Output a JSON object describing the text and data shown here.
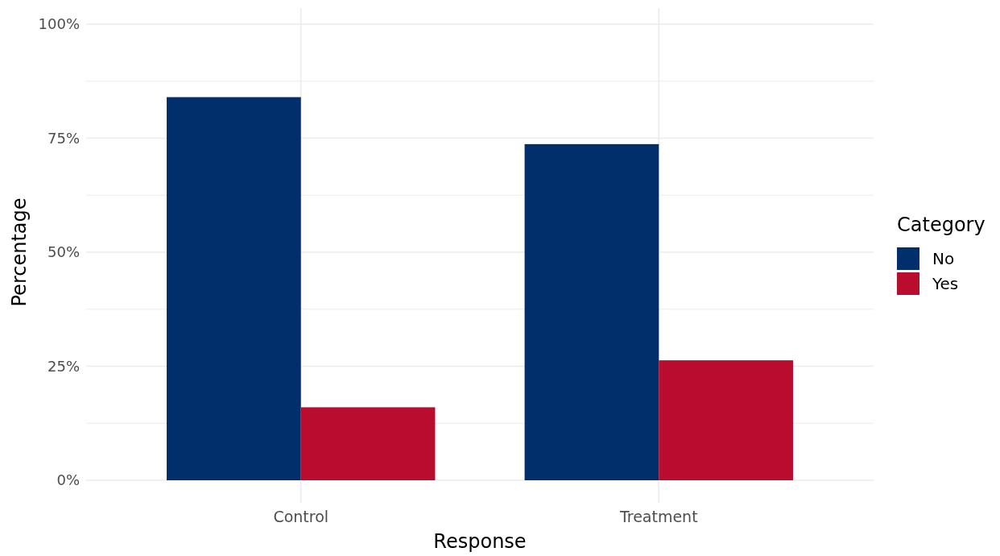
{
  "chart_data": {
    "type": "bar",
    "xlabel": "Response",
    "ylabel": "Percentage",
    "legend_title": "Category",
    "categories": [
      "Control",
      "Treatment"
    ],
    "series": [
      {
        "name": "No",
        "color": "#002f6c",
        "values": [
          84,
          73.7
        ]
      },
      {
        "name": "Yes",
        "color": "#ba0c2f",
        "values": [
          16,
          26.3
        ]
      }
    ],
    "ylim": [
      0,
      100
    ],
    "yticks": [
      {
        "value": 0,
        "label": "0%"
      },
      {
        "value": 12.5,
        "label": null
      },
      {
        "value": 25,
        "label": "25%"
      },
      {
        "value": 37.5,
        "label": null
      },
      {
        "value": 50,
        "label": "50%"
      },
      {
        "value": 62.5,
        "label": null
      },
      {
        "value": 75,
        "label": "75%"
      },
      {
        "value": 87.5,
        "label": null
      },
      {
        "value": 100,
        "label": "100%"
      }
    ],
    "grid": true,
    "legend": "right"
  }
}
